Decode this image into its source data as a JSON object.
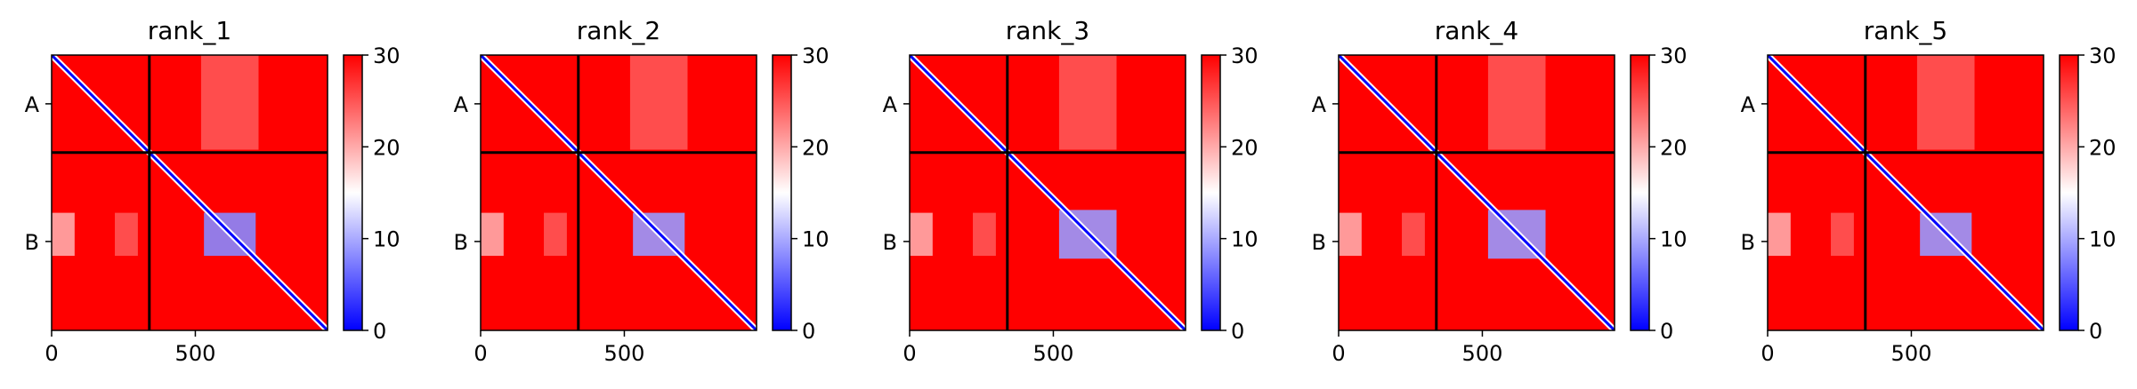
{
  "chart_data": [
    {
      "type": "heatmap",
      "title": "rank_1",
      "x_ticks": [
        0,
        500
      ],
      "x_range": [
        0,
        960
      ],
      "y_ticks": [
        "A",
        "B"
      ],
      "chain_boundary": 340,
      "colorbar": {
        "ticks": [
          0,
          10,
          20,
          30
        ],
        "range": [
          0,
          30
        ],
        "colormap": "bwr"
      },
      "blocks": [
        {
          "r0": 550,
          "r1": 700,
          "c0": 530,
          "c1": 710,
          "v": 8
        },
        {
          "r0": 550,
          "r1": 700,
          "c0": 0,
          "c1": 80,
          "v": 20
        },
        {
          "r0": 550,
          "r1": 700,
          "c0": 220,
          "c1": 300,
          "v": 25
        },
        {
          "r0": 0,
          "r1": 330,
          "c0": 520,
          "c1": 720,
          "v": 25
        }
      ]
    },
    {
      "type": "heatmap",
      "title": "rank_2",
      "x_ticks": [
        0,
        500
      ],
      "x_range": [
        0,
        960
      ],
      "y_ticks": [
        "A",
        "B"
      ],
      "chain_boundary": 340,
      "colorbar": {
        "ticks": [
          0,
          10,
          20,
          30
        ],
        "range": [
          0,
          30
        ],
        "colormap": "bwr"
      },
      "blocks": [
        {
          "r0": 550,
          "r1": 700,
          "c0": 530,
          "c1": 710,
          "v": 9
        },
        {
          "r0": 550,
          "r1": 700,
          "c0": 0,
          "c1": 80,
          "v": 20
        },
        {
          "r0": 550,
          "r1": 700,
          "c0": 220,
          "c1": 300,
          "v": 25
        },
        {
          "r0": 0,
          "r1": 330,
          "c0": 520,
          "c1": 720,
          "v": 25
        }
      ]
    },
    {
      "type": "heatmap",
      "title": "rank_3",
      "x_ticks": [
        0,
        500
      ],
      "x_range": [
        0,
        960
      ],
      "y_ticks": [
        "A",
        "B"
      ],
      "chain_boundary": 340,
      "colorbar": {
        "ticks": [
          0,
          10,
          20,
          30
        ],
        "range": [
          0,
          30
        ],
        "colormap": "bwr"
      },
      "blocks": [
        {
          "r0": 540,
          "r1": 710,
          "c0": 520,
          "c1": 720,
          "v": 9
        },
        {
          "r0": 550,
          "r1": 700,
          "c0": 0,
          "c1": 80,
          "v": 20
        },
        {
          "r0": 550,
          "r1": 700,
          "c0": 220,
          "c1": 300,
          "v": 25
        },
        {
          "r0": 0,
          "r1": 330,
          "c0": 520,
          "c1": 720,
          "v": 25
        }
      ]
    },
    {
      "type": "heatmap",
      "title": "rank_4",
      "x_ticks": [
        0,
        500
      ],
      "x_range": [
        0,
        960
      ],
      "y_ticks": [
        "A",
        "B"
      ],
      "chain_boundary": 340,
      "colorbar": {
        "ticks": [
          0,
          10,
          20,
          30
        ],
        "range": [
          0,
          30
        ],
        "colormap": "bwr"
      },
      "blocks": [
        {
          "r0": 540,
          "r1": 710,
          "c0": 520,
          "c1": 720,
          "v": 9
        },
        {
          "r0": 550,
          "r1": 700,
          "c0": 0,
          "c1": 80,
          "v": 20
        },
        {
          "r0": 550,
          "r1": 700,
          "c0": 220,
          "c1": 300,
          "v": 25
        },
        {
          "r0": 0,
          "r1": 330,
          "c0": 520,
          "c1": 720,
          "v": 25
        }
      ]
    },
    {
      "type": "heatmap",
      "title": "rank_5",
      "x_ticks": [
        0,
        500
      ],
      "x_range": [
        0,
        960
      ],
      "y_ticks": [
        "A",
        "B"
      ],
      "chain_boundary": 340,
      "colorbar": {
        "ticks": [
          0,
          10,
          20,
          30
        ],
        "range": [
          0,
          30
        ],
        "colormap": "bwr"
      },
      "blocks": [
        {
          "r0": 550,
          "r1": 700,
          "c0": 530,
          "c1": 710,
          "v": 9
        },
        {
          "r0": 550,
          "r1": 700,
          "c0": 0,
          "c1": 80,
          "v": 20
        },
        {
          "r0": 550,
          "r1": 700,
          "c0": 220,
          "c1": 300,
          "v": 25
        },
        {
          "r0": 0,
          "r1": 330,
          "c0": 520,
          "c1": 720,
          "v": 25
        }
      ]
    }
  ]
}
